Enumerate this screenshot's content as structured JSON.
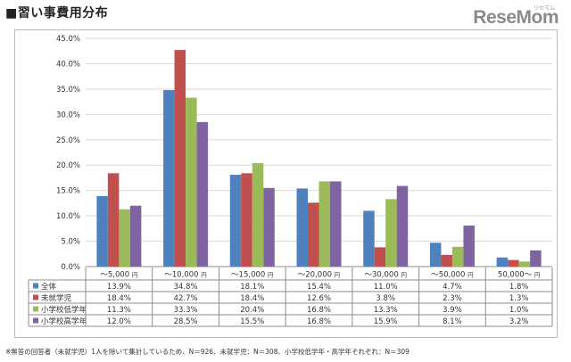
{
  "title": "■習い事費用分布",
  "logo": {
    "text": "ReseMom",
    "kana": "リセマム"
  },
  "note": "※無答の回答者（未就学児）1人を除いて集計しているため、N＝926、未就学児：N＝308、小学校低学年・高学年それぞれ：N＝309",
  "chart_data": {
    "type": "bar",
    "categories": [
      "～5,000",
      "～10,000",
      "～15,000",
      "～20,000",
      "～30,000",
      "～50,000",
      "50,000～"
    ],
    "category_unit": "円",
    "ylim": [
      0,
      45
    ],
    "yticks": [
      "0.0%",
      "5.0%",
      "10.0%",
      "15.0%",
      "20.0%",
      "25.0%",
      "30.0%",
      "35.0%",
      "40.0%",
      "45.0%"
    ],
    "grid": true,
    "legend": "table-below",
    "series": [
      {
        "name": "全体",
        "color": "#4f81bd",
        "values": [
          13.9,
          34.8,
          18.1,
          15.4,
          11.0,
          4.7,
          1.8
        ],
        "labels": [
          "13.9%",
          "34.8%",
          "18.1%",
          "15.4%",
          "11.0%",
          "4.7%",
          "1.8%"
        ]
      },
      {
        "name": "未就学児",
        "color": "#c0504d",
        "values": [
          18.4,
          42.7,
          18.4,
          12.6,
          3.8,
          2.3,
          1.3
        ],
        "labels": [
          "18.4%",
          "42.7%",
          "18.4%",
          "12.6%",
          "3.8%",
          "2.3%",
          "1.3%"
        ]
      },
      {
        "name": "小学校低学年",
        "color": "#9bbb59",
        "values": [
          11.3,
          33.3,
          20.4,
          16.8,
          13.3,
          3.9,
          1.0
        ],
        "labels": [
          "11.3%",
          "33.3%",
          "20.4%",
          "16.8%",
          "13.3%",
          "3.9%",
          "1.0%"
        ]
      },
      {
        "name": "小学校高学年",
        "color": "#8064a2",
        "values": [
          12.0,
          28.5,
          15.5,
          16.8,
          15.9,
          8.1,
          3.2
        ],
        "labels": [
          "12.0%",
          "28.5%",
          "15.5%",
          "16.8%",
          "15.9%",
          "8.1%",
          "3.2%"
        ]
      }
    ]
  }
}
